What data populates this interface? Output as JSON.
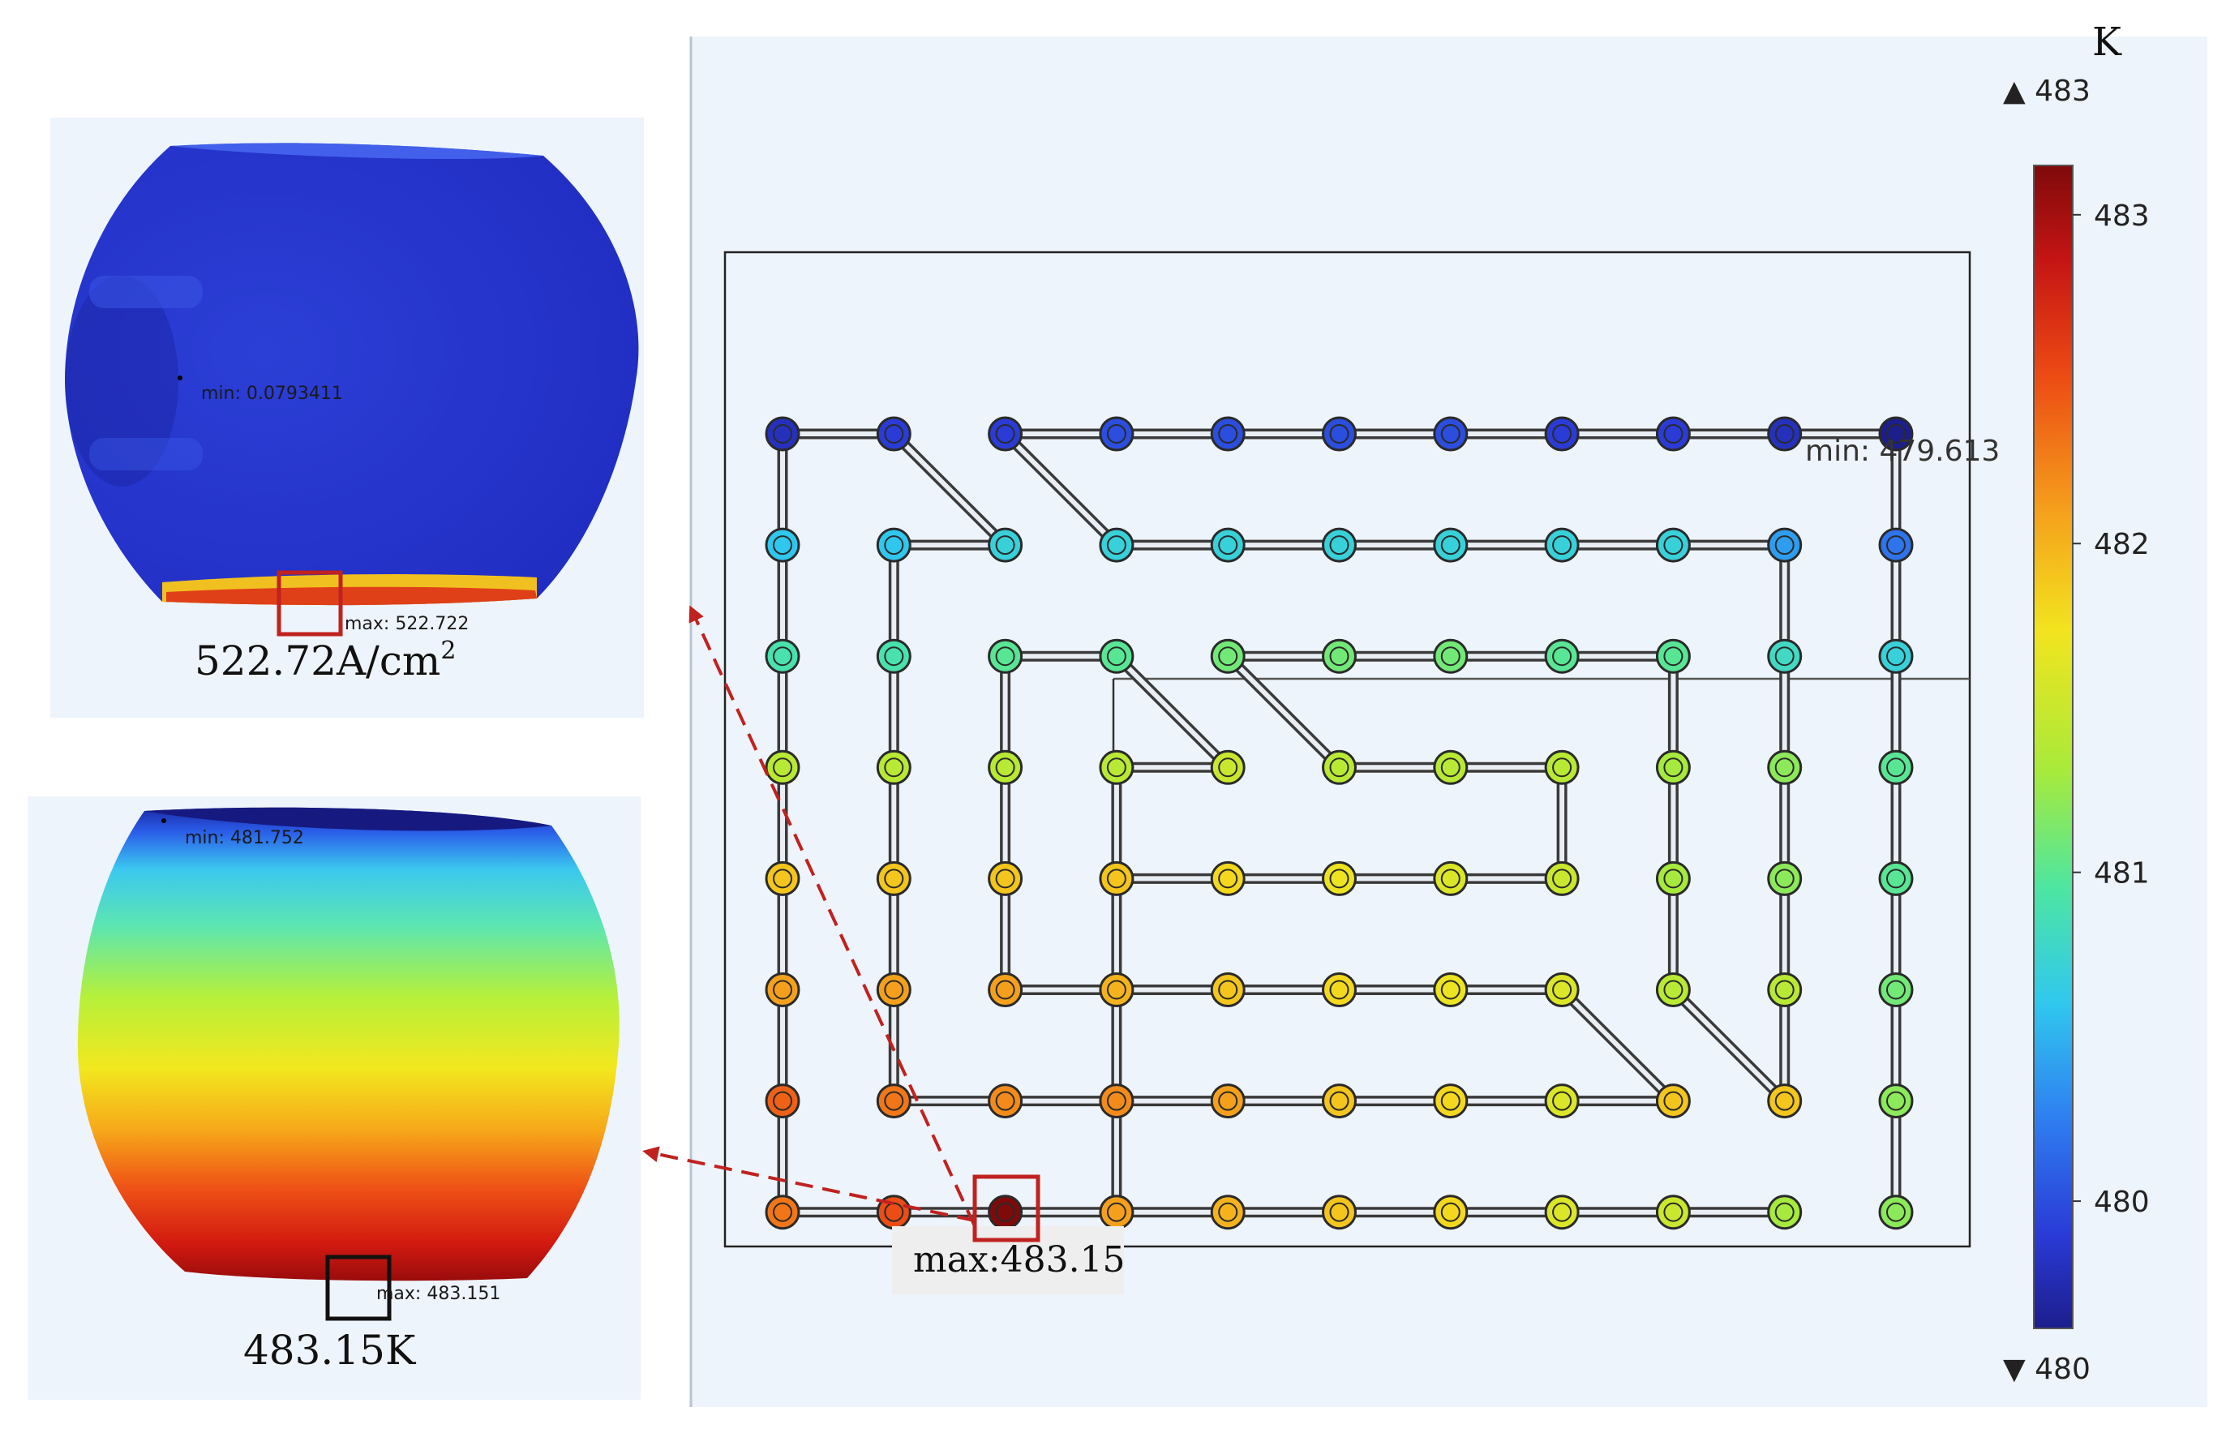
{
  "current_density_view": {
    "min_label": "min: 0.0793411",
    "max_label": "max: 522.722",
    "caption_main": "522.72A/cm",
    "caption_sup": "2"
  },
  "temperature_view": {
    "min_label": "min: 481.752",
    "max_label": "max: 483.151",
    "caption": "483.15K"
  },
  "grid_plot": {
    "min_label": "min: 479.613",
    "max_callout": "max:483.15",
    "rows": 8,
    "cols": 11,
    "row_temperatures": [
      [
        479.8,
        479.9,
        479.9,
        480.0,
        480.0,
        480.0,
        480.0,
        479.9,
        479.9,
        479.8,
        479.613
      ],
      [
        480.6,
        480.6,
        480.7,
        480.7,
        480.7,
        480.7,
        480.7,
        480.7,
        480.7,
        480.4,
        480.2
      ],
      [
        480.9,
        480.9,
        481.0,
        481.0,
        481.1,
        481.1,
        481.1,
        481.0,
        481.0,
        480.8,
        480.7
      ],
      [
        481.4,
        481.4,
        481.4,
        481.4,
        481.5,
        481.4,
        481.4,
        481.4,
        481.3,
        481.2,
        481.0
      ],
      [
        481.9,
        481.9,
        481.9,
        481.9,
        481.8,
        481.7,
        481.6,
        481.5,
        481.3,
        481.2,
        481.0
      ],
      [
        482.1,
        482.1,
        482.1,
        482.0,
        481.9,
        481.8,
        481.7,
        481.6,
        481.4,
        481.4,
        481.1
      ],
      [
        482.4,
        482.3,
        482.2,
        482.2,
        482.1,
        481.9,
        481.8,
        481.6,
        481.9,
        481.9,
        481.2
      ],
      [
        482.3,
        482.5,
        483.15,
        482.1,
        482.0,
        481.9,
        481.8,
        481.6,
        481.5,
        481.3,
        481.2
      ]
    ]
  },
  "colorbar": {
    "unit": "K",
    "max_marker": "▲ 483",
    "min_marker": "▼ 480",
    "ticks": [
      "483",
      "482",
      "481",
      "480"
    ],
    "range": [
      479.613,
      483.15
    ]
  },
  "colors": {
    "highlight_box": "#c0221f",
    "arrow": "#c0221f",
    "panel_bg": "#eef4fb"
  }
}
